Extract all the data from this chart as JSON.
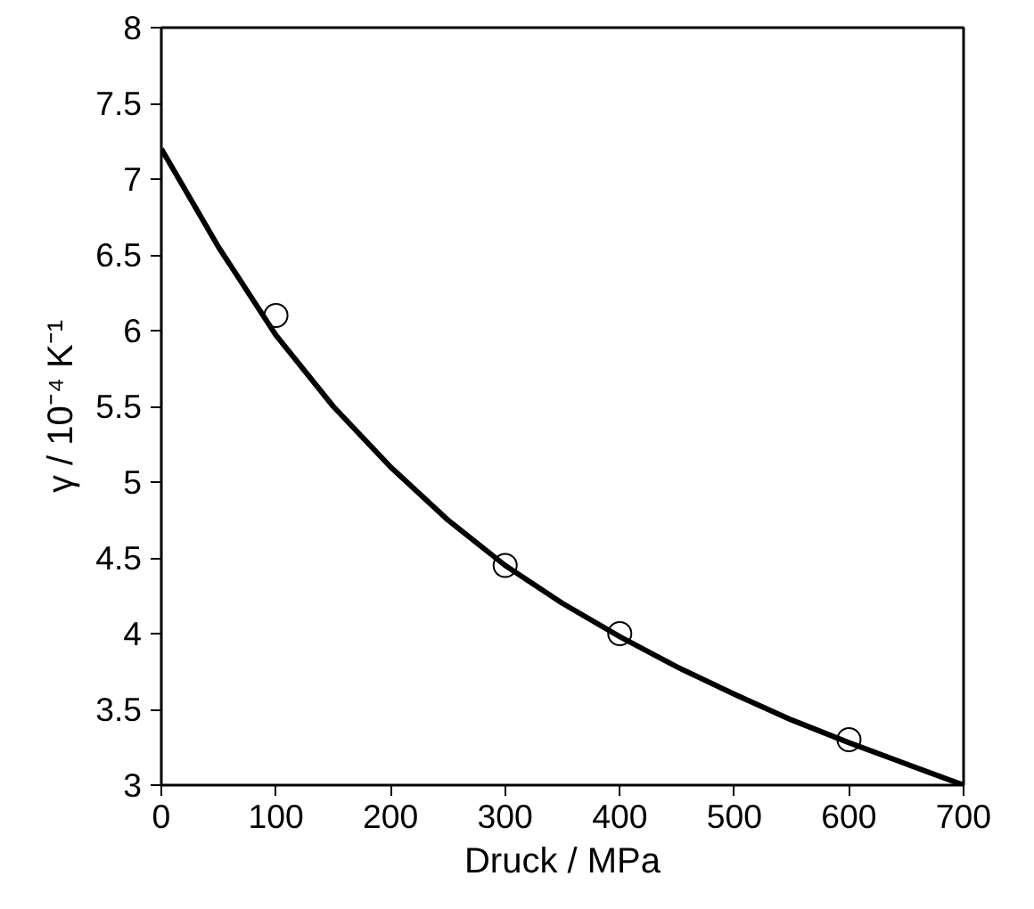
{
  "chart_data": {
    "type": "line",
    "xlabel": "Druck / MPa",
    "ylabel": "γ / 10⁻⁴ K⁻¹",
    "xlim": [
      0,
      700
    ],
    "ylim": [
      3,
      8
    ],
    "xticks": [
      0,
      100,
      200,
      300,
      400,
      500,
      600,
      700
    ],
    "yticks": [
      3,
      {
        "value": 3.5,
        "label": "3.5"
      },
      4,
      {
        "value": 4.5,
        "label": "4.5"
      },
      5,
      {
        "value": 5.5,
        "label": "5.5"
      },
      6,
      {
        "value": 6.5,
        "label": "6.5"
      },
      7,
      {
        "value": 7.5,
        "label": "7.5"
      },
      8
    ],
    "grid": false,
    "series": [
      {
        "color": "#000000",
        "marker": "none",
        "x": [
          0,
          50,
          100,
          150,
          200,
          250,
          300,
          350,
          400,
          450,
          500,
          550,
          600,
          650,
          700
        ],
        "values": [
          7.2,
          6.55,
          5.97,
          5.5,
          5.1,
          4.75,
          4.45,
          4.2,
          3.98,
          3.78,
          3.6,
          3.43,
          3.28,
          3.14,
          3.0
        ]
      },
      {
        "type": "scatter",
        "color": "#000000",
        "marker": "circle",
        "x": [
          100,
          300,
          400,
          600
        ],
        "values": [
          6.1,
          4.45,
          4.0,
          3.3
        ]
      }
    ]
  }
}
